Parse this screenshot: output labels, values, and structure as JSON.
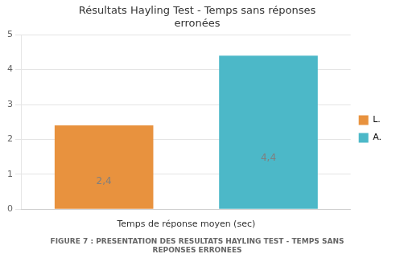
{
  "chart_data": {
    "type": "bar",
    "title": "Résultats Hayling Test - Temps sans réponses\nerronées",
    "xlabel": "Temps de réponse moyen (sec)",
    "caption": "FIGURE 7 : PRESENTATION DES RESULTATS HAYLING TEST - TEMPS SANS\nREPONSES ERRONEES",
    "categories": [
      "L.",
      "A."
    ],
    "values": [
      2.4,
      4.4
    ],
    "value_labels": [
      "2,4",
      "4,4"
    ],
    "data_labels": true,
    "colors": [
      "#E8923E",
      "#4CB8C8"
    ],
    "ylim": [
      0,
      5
    ],
    "yticks": [
      0,
      1,
      2,
      3,
      4,
      5
    ],
    "grid": true,
    "legend": "right",
    "tick_labels": "y"
  }
}
